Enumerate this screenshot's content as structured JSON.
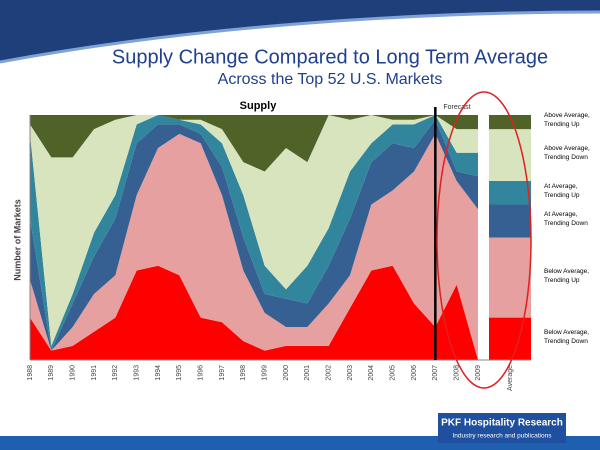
{
  "header": {
    "title": "Supply Change Compared to Long Term Average",
    "subtitle": "Across the Top 52 U.S. Markets"
  },
  "chart_data": {
    "type": "stacked-area",
    "title": "Supply",
    "y_label": "Number of Markets",
    "forecast_label": "Forecast",
    "forecast_category": "2007",
    "average_label": "Average",
    "categories": [
      "1988",
      "1989",
      "1990",
      "1991",
      "1992",
      "1993",
      "1994",
      "1995",
      "1996",
      "1997",
      "1998",
      "1999",
      "2000",
      "2001",
      "2002",
      "2003",
      "2004",
      "2005",
      "2006",
      "2007",
      "2008",
      "2009"
    ],
    "ylim": [
      0,
      52
    ],
    "series": [
      {
        "name": "Below Average, Trending Down",
        "color": "#ff0000",
        "values": [
          9,
          2,
          3,
          6,
          9,
          19,
          20,
          18,
          9,
          8,
          4,
          2,
          3,
          3,
          3,
          11,
          19,
          20,
          12,
          7,
          16,
          0
        ],
        "average": 9
      },
      {
        "name": "Below Average, Trending Up",
        "color": "#e6a0a0",
        "values": [
          8,
          0,
          4,
          8,
          9,
          16,
          25,
          30,
          37,
          27,
          15,
          8,
          4,
          4,
          9,
          7,
          14,
          16,
          28,
          41,
          22,
          32
        ],
        "average": 17
      },
      {
        "name": "At Average, Trending Down",
        "color": "#376092",
        "values": [
          13,
          0,
          5,
          8,
          12,
          11,
          5,
          2,
          2,
          6,
          7,
          4,
          6,
          5,
          8,
          12,
          9,
          10,
          5,
          3,
          2,
          7
        ],
        "average": 7
      },
      {
        "name": "At Average, Trending Up",
        "color": "#31859c",
        "values": [
          18,
          1,
          2,
          5,
          5,
          4,
          2,
          1,
          2,
          5,
          9,
          6,
          2,
          8,
          8,
          10,
          4,
          4,
          5,
          1,
          4,
          5
        ],
        "average": 5
      },
      {
        "name": "Above Average, Trending Down",
        "color": "#d7e4bd",
        "values": [
          2,
          40,
          29,
          22,
          16,
          2,
          0,
          0,
          1,
          3,
          7,
          20,
          30,
          22,
          24,
          11,
          6,
          1,
          1,
          0,
          5,
          5
        ],
        "average": 11
      },
      {
        "name": "Above Average, Trending Up",
        "color": "#4f6228",
        "values": [
          2,
          9,
          9,
          3,
          1,
          0,
          0,
          1,
          1,
          3,
          10,
          12,
          7,
          10,
          0,
          1,
          0,
          1,
          1,
          0,
          3,
          3
        ],
        "average": 3
      }
    ]
  },
  "footer": {
    "brand": "PKF Hospitality Research",
    "tagline": "Industry research and publications"
  }
}
